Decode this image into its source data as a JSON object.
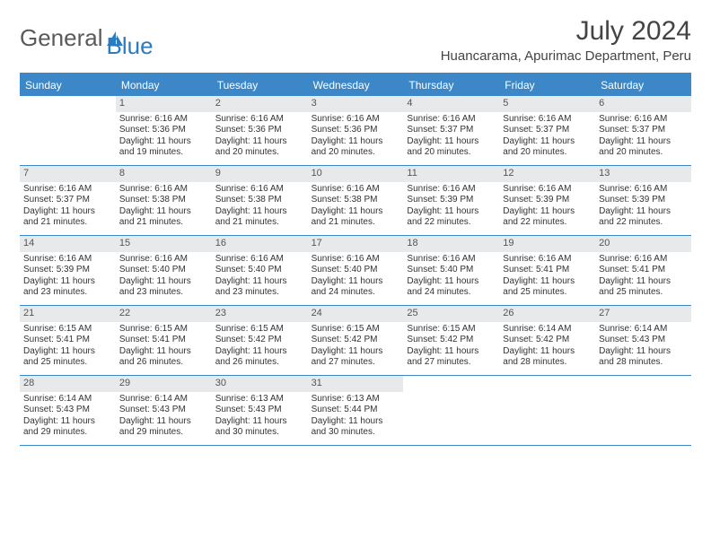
{
  "logo": {
    "text1": "General",
    "text2": "Blue"
  },
  "title": "July 2024",
  "location": "Huancarama, Apurimac Department, Peru",
  "colors": {
    "accent": "#3b87c8",
    "header_bg": "#3b87c8",
    "header_text": "#ffffff",
    "daynum_bg": "#e8e9ea",
    "body_text": "#333333",
    "logo_gray": "#5a5a5a",
    "logo_blue": "#2b7bbf"
  },
  "weekdays": [
    "Sunday",
    "Monday",
    "Tuesday",
    "Wednesday",
    "Thursday",
    "Friday",
    "Saturday"
  ],
  "start_offset": 1,
  "days": [
    {
      "n": 1,
      "sunrise": "6:16 AM",
      "sunset": "5:36 PM",
      "daylight": "11 hours and 19 minutes."
    },
    {
      "n": 2,
      "sunrise": "6:16 AM",
      "sunset": "5:36 PM",
      "daylight": "11 hours and 20 minutes."
    },
    {
      "n": 3,
      "sunrise": "6:16 AM",
      "sunset": "5:36 PM",
      "daylight": "11 hours and 20 minutes."
    },
    {
      "n": 4,
      "sunrise": "6:16 AM",
      "sunset": "5:37 PM",
      "daylight": "11 hours and 20 minutes."
    },
    {
      "n": 5,
      "sunrise": "6:16 AM",
      "sunset": "5:37 PM",
      "daylight": "11 hours and 20 minutes."
    },
    {
      "n": 6,
      "sunrise": "6:16 AM",
      "sunset": "5:37 PM",
      "daylight": "11 hours and 20 minutes."
    },
    {
      "n": 7,
      "sunrise": "6:16 AM",
      "sunset": "5:37 PM",
      "daylight": "11 hours and 21 minutes."
    },
    {
      "n": 8,
      "sunrise": "6:16 AM",
      "sunset": "5:38 PM",
      "daylight": "11 hours and 21 minutes."
    },
    {
      "n": 9,
      "sunrise": "6:16 AM",
      "sunset": "5:38 PM",
      "daylight": "11 hours and 21 minutes."
    },
    {
      "n": 10,
      "sunrise": "6:16 AM",
      "sunset": "5:38 PM",
      "daylight": "11 hours and 21 minutes."
    },
    {
      "n": 11,
      "sunrise": "6:16 AM",
      "sunset": "5:39 PM",
      "daylight": "11 hours and 22 minutes."
    },
    {
      "n": 12,
      "sunrise": "6:16 AM",
      "sunset": "5:39 PM",
      "daylight": "11 hours and 22 minutes."
    },
    {
      "n": 13,
      "sunrise": "6:16 AM",
      "sunset": "5:39 PM",
      "daylight": "11 hours and 22 minutes."
    },
    {
      "n": 14,
      "sunrise": "6:16 AM",
      "sunset": "5:39 PM",
      "daylight": "11 hours and 23 minutes."
    },
    {
      "n": 15,
      "sunrise": "6:16 AM",
      "sunset": "5:40 PM",
      "daylight": "11 hours and 23 minutes."
    },
    {
      "n": 16,
      "sunrise": "6:16 AM",
      "sunset": "5:40 PM",
      "daylight": "11 hours and 23 minutes."
    },
    {
      "n": 17,
      "sunrise": "6:16 AM",
      "sunset": "5:40 PM",
      "daylight": "11 hours and 24 minutes."
    },
    {
      "n": 18,
      "sunrise": "6:16 AM",
      "sunset": "5:40 PM",
      "daylight": "11 hours and 24 minutes."
    },
    {
      "n": 19,
      "sunrise": "6:16 AM",
      "sunset": "5:41 PM",
      "daylight": "11 hours and 25 minutes."
    },
    {
      "n": 20,
      "sunrise": "6:16 AM",
      "sunset": "5:41 PM",
      "daylight": "11 hours and 25 minutes."
    },
    {
      "n": 21,
      "sunrise": "6:15 AM",
      "sunset": "5:41 PM",
      "daylight": "11 hours and 25 minutes."
    },
    {
      "n": 22,
      "sunrise": "6:15 AM",
      "sunset": "5:41 PM",
      "daylight": "11 hours and 26 minutes."
    },
    {
      "n": 23,
      "sunrise": "6:15 AM",
      "sunset": "5:42 PM",
      "daylight": "11 hours and 26 minutes."
    },
    {
      "n": 24,
      "sunrise": "6:15 AM",
      "sunset": "5:42 PM",
      "daylight": "11 hours and 27 minutes."
    },
    {
      "n": 25,
      "sunrise": "6:15 AM",
      "sunset": "5:42 PM",
      "daylight": "11 hours and 27 minutes."
    },
    {
      "n": 26,
      "sunrise": "6:14 AM",
      "sunset": "5:42 PM",
      "daylight": "11 hours and 28 minutes."
    },
    {
      "n": 27,
      "sunrise": "6:14 AM",
      "sunset": "5:43 PM",
      "daylight": "11 hours and 28 minutes."
    },
    {
      "n": 28,
      "sunrise": "6:14 AM",
      "sunset": "5:43 PM",
      "daylight": "11 hours and 29 minutes."
    },
    {
      "n": 29,
      "sunrise": "6:14 AM",
      "sunset": "5:43 PM",
      "daylight": "11 hours and 29 minutes."
    },
    {
      "n": 30,
      "sunrise": "6:13 AM",
      "sunset": "5:43 PM",
      "daylight": "11 hours and 30 minutes."
    },
    {
      "n": 31,
      "sunrise": "6:13 AM",
      "sunset": "5:44 PM",
      "daylight": "11 hours and 30 minutes."
    }
  ],
  "labels": {
    "sunrise": "Sunrise:",
    "sunset": "Sunset:",
    "daylight": "Daylight:"
  }
}
